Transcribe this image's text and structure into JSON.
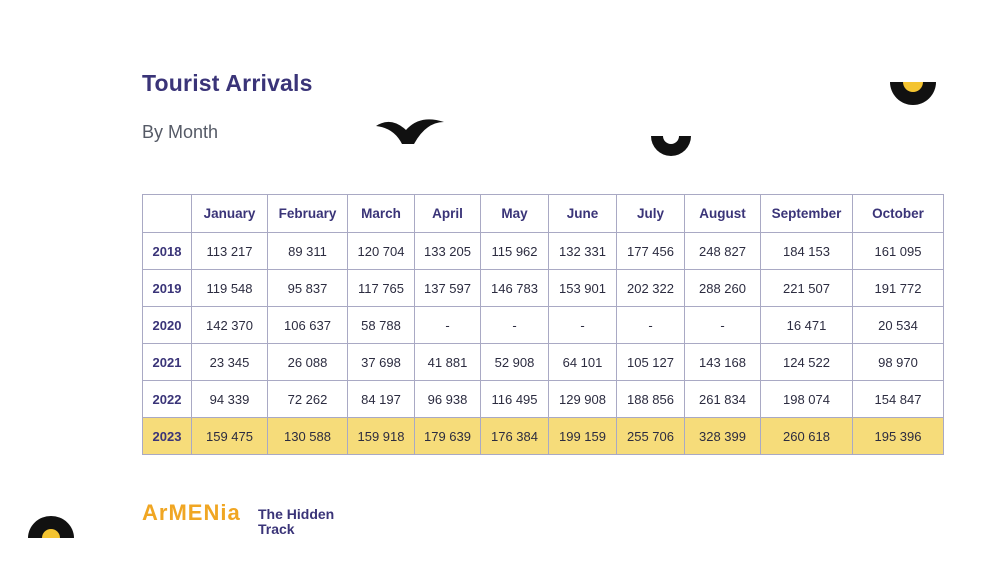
{
  "header": {
    "title": "Tourist Arrivals",
    "subtitle": "By Month"
  },
  "table": {
    "columns": [
      "",
      "January",
      "February",
      "March",
      "April",
      "May",
      "June",
      "July",
      "August",
      "September",
      "October"
    ],
    "rows": [
      {
        "year": "2018",
        "values": [
          "113 217",
          "89 311",
          "120 704",
          "133 205",
          "115 962",
          "132 331",
          "177 456",
          "248 827",
          "184 153",
          "161 095"
        ]
      },
      {
        "year": "2019",
        "values": [
          "119 548",
          "95 837",
          "117 765",
          "137 597",
          "146 783",
          "153 901",
          "202 322",
          "288 260",
          "221 507",
          "191 772"
        ]
      },
      {
        "year": "2020",
        "values": [
          "142 370",
          "106 637",
          "58 788",
          "-",
          "-",
          "-",
          "-",
          "-",
          "16 471",
          "20 534"
        ]
      },
      {
        "year": "2021",
        "values": [
          "23 345",
          "26 088",
          "37 698",
          "41 881",
          "52 908",
          "64 101",
          "105 127",
          "143 168",
          "124 522",
          "98 970"
        ]
      },
      {
        "year": "2022",
        "values": [
          "94 339",
          "72 262",
          "84 197",
          "96 938",
          "116 495",
          "129 908",
          "188 856",
          "261 834",
          "198 074",
          "154 847"
        ]
      },
      {
        "year": "2023",
        "values": [
          "159 475",
          "130 588",
          "159 918",
          "179 639",
          "176 384",
          "199 159",
          "255 706",
          "328 399",
          "260 618",
          "195 396"
        ]
      }
    ],
    "highlight_year": "2023",
    "highlight_color": "#f6dc7a"
  },
  "brand": {
    "logo_text": "ArMENia",
    "tagline_line1": "The Hidden",
    "tagline_line2": "Track",
    "logo_color": "#f0a623",
    "accent_color": "#3a3478"
  }
}
